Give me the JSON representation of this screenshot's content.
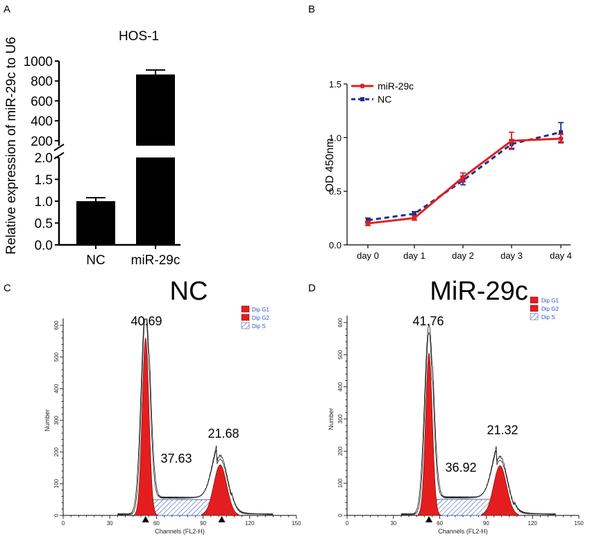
{
  "panels": {
    "a": "A",
    "b": "B",
    "c": "C",
    "d": "D"
  },
  "colors": {
    "red": "#e02020",
    "blue": "#1f2f8f",
    "bar": "#000000",
    "fcs_red": "#e41e1e",
    "fcs_blue": "#3a5bb0"
  },
  "chart_data": [
    {
      "type": "bar",
      "title": "HOS-1",
      "xlabel": "",
      "ylabel": "Relative expression of miR-29c to U6",
      "categories": [
        "NC",
        "miR-29c"
      ],
      "values": [
        1.0,
        865
      ],
      "errors": [
        0.08,
        45
      ],
      "ylim": [
        0,
        1000
      ],
      "axis_break": {
        "lower": [
          0,
          2.0
        ],
        "upper": [
          150,
          1000
        ]
      },
      "yticks_lower": [
        "0.0",
        "0.5",
        "1.0",
        "1.5",
        "2.0"
      ],
      "yticks_upper": [
        "200",
        "400",
        "600",
        "800",
        "1000"
      ]
    },
    {
      "type": "line",
      "title": "",
      "xlabel": "",
      "ylabel": "OD 450nm",
      "categories": [
        "day 0",
        "day 1",
        "day 2",
        "day 3",
        "day 4"
      ],
      "ylim": [
        0,
        1.5
      ],
      "yticks": [
        "0.0",
        "0.5",
        "1.0",
        "1.5"
      ],
      "legend_position": "top-left",
      "series": [
        {
          "name": "miR-29c",
          "values": [
            0.2,
            0.25,
            0.63,
            0.97,
            0.99
          ],
          "errors": [
            0.02,
            0.02,
            0.04,
            0.08,
            0.04
          ]
        },
        {
          "name": "NC",
          "values": [
            0.23,
            0.29,
            0.6,
            0.94,
            1.05
          ],
          "errors": [
            0.02,
            0.02,
            0.04,
            0.04,
            0.09
          ]
        }
      ]
    },
    {
      "type": "area",
      "title": "NC",
      "xlabel": "Channels (FL2-H)",
      "ylabel": "Number",
      "xlim": [
        0,
        150
      ],
      "ylim": [
        0,
        600
      ],
      "xticks": [
        "0",
        "30",
        "60",
        "90",
        "120",
        "150"
      ],
      "yticks": [
        "0",
        "100",
        "200",
        "300",
        "400",
        "500",
        "600"
      ],
      "legend": [
        "Dip G1",
        "Dip G2",
        "Dip S"
      ],
      "g1_peak": {
        "x": 53,
        "y": 560
      },
      "g2_peak": {
        "x": 101,
        "y": 160
      },
      "annotations": {
        "g1": "40.69",
        "s": "37.63",
        "g2": "21.68"
      },
      "markers": [
        53,
        102
      ]
    },
    {
      "type": "area",
      "title": "MiR-29c",
      "xlabel": "Channels (FL2-H)",
      "ylabel": "Number",
      "xlim": [
        0,
        150
      ],
      "ylim": [
        0,
        600
      ],
      "xticks": [
        "0",
        "30",
        "60",
        "90",
        "120",
        "150"
      ],
      "yticks": [
        "0",
        "100",
        "200",
        "300",
        "400",
        "500",
        "600"
      ],
      "legend": [
        "Dip G1",
        "Dip G2",
        "Dip S"
      ],
      "g1_peak": {
        "x": 53,
        "y": 505
      },
      "g2_peak": {
        "x": 99,
        "y": 155
      },
      "annotations": {
        "g1": "41.76",
        "s": "36.92",
        "g2": "21.32"
      },
      "markers": [
        53
      ]
    }
  ]
}
